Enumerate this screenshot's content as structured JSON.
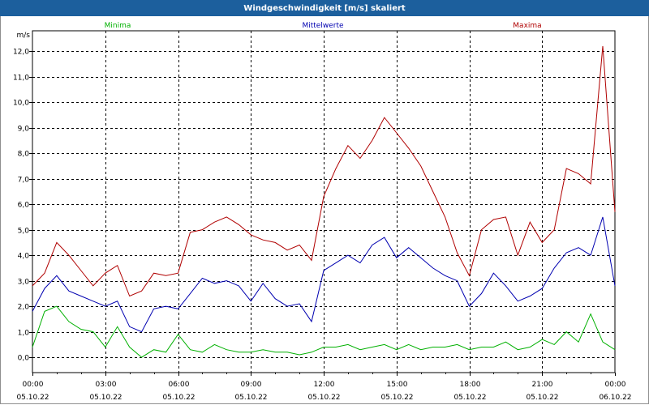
{
  "window": {
    "title": "Windgeschwindigkeit [m/s] skaliert"
  },
  "chart_data": {
    "type": "line",
    "title": "Windgeschwindigkeit [m/s] skaliert",
    "ylabel": "m/s",
    "xlabel": "",
    "ylim": [
      -0.6,
      12.8
    ],
    "grid": true,
    "legend_placement": "top",
    "y_ticks": [
      "0,0",
      "1,0",
      "2,0",
      "3,0",
      "4,0",
      "5,0",
      "6,0",
      "7,0",
      "8,0",
      "9,0",
      "10,0",
      "11,0",
      "12,0"
    ],
    "x_ticks": [
      {
        "time": "00:00",
        "date": "05.10.22"
      },
      {
        "time": "03:00",
        "date": "05.10.22"
      },
      {
        "time": "06:00",
        "date": "05.10.22"
      },
      {
        "time": "09:00",
        "date": "05.10.22"
      },
      {
        "time": "12:00",
        "date": "05.10.22"
      },
      {
        "time": "15:00",
        "date": "05.10.22"
      },
      {
        "time": "18:00",
        "date": "05.10.22"
      },
      {
        "time": "21:00",
        "date": "05.10.22"
      },
      {
        "time": "00:00",
        "date": "06.10.22"
      }
    ],
    "x_hours": [
      0,
      0.5,
      1,
      1.5,
      2,
      2.5,
      3,
      3.5,
      4,
      4.5,
      5,
      5.5,
      6,
      6.5,
      7,
      7.5,
      8,
      8.5,
      9,
      9.5,
      10,
      10.5,
      11,
      11.5,
      12,
      12.5,
      13,
      13.5,
      14,
      14.5,
      15,
      15.5,
      16,
      16.5,
      17,
      17.5,
      18,
      18.5,
      19,
      19.5,
      20,
      20.5,
      21,
      21.5,
      22,
      22.5,
      23,
      23.5,
      24
    ],
    "series": [
      {
        "name": "Minima",
        "color": "#00b000",
        "values": [
          0.4,
          1.8,
          2.0,
          1.4,
          1.1,
          1.0,
          0.4,
          1.2,
          0.4,
          0.0,
          0.3,
          0.2,
          0.9,
          0.3,
          0.2,
          0.5,
          0.3,
          0.2,
          0.2,
          0.3,
          0.2,
          0.2,
          0.1,
          0.2,
          0.4,
          0.4,
          0.5,
          0.3,
          0.4,
          0.5,
          0.3,
          0.5,
          0.3,
          0.4,
          0.4,
          0.5,
          0.3,
          0.4,
          0.4,
          0.6,
          0.3,
          0.4,
          0.7,
          0.5,
          1.0,
          0.6,
          1.7,
          0.6,
          0.3
        ]
      },
      {
        "name": "Mittelwerte",
        "color": "#0000b0",
        "values": [
          1.8,
          2.7,
          3.2,
          2.6,
          2.4,
          2.2,
          2.0,
          2.2,
          1.2,
          1.0,
          1.9,
          2.0,
          1.9,
          2.5,
          3.1,
          2.9,
          3.0,
          2.8,
          2.2,
          2.9,
          2.3,
          2.0,
          2.1,
          1.4,
          3.4,
          3.7,
          4.0,
          3.7,
          4.4,
          4.7,
          3.9,
          4.3,
          3.9,
          3.5,
          3.2,
          3.0,
          2.0,
          2.5,
          3.3,
          2.8,
          2.2,
          2.4,
          2.7,
          3.5,
          4.1,
          4.3,
          4.0,
          5.5,
          2.8
        ]
      },
      {
        "name": "Maxima",
        "color": "#b00000",
        "values": [
          2.8,
          3.3,
          4.5,
          4.0,
          3.4,
          2.8,
          3.3,
          3.6,
          2.4,
          2.6,
          3.3,
          3.2,
          3.3,
          4.9,
          5.0,
          5.3,
          5.5,
          5.2,
          4.8,
          4.6,
          4.5,
          4.2,
          4.4,
          3.8,
          6.3,
          7.4,
          8.3,
          7.8,
          8.5,
          9.4,
          8.8,
          8.2,
          7.5,
          6.5,
          5.5,
          4.1,
          3.2,
          5.0,
          5.4,
          5.5,
          4.0,
          5.3,
          4.5,
          5.0,
          7.4,
          7.2,
          6.8,
          12.2,
          5.7
        ]
      }
    ]
  }
}
